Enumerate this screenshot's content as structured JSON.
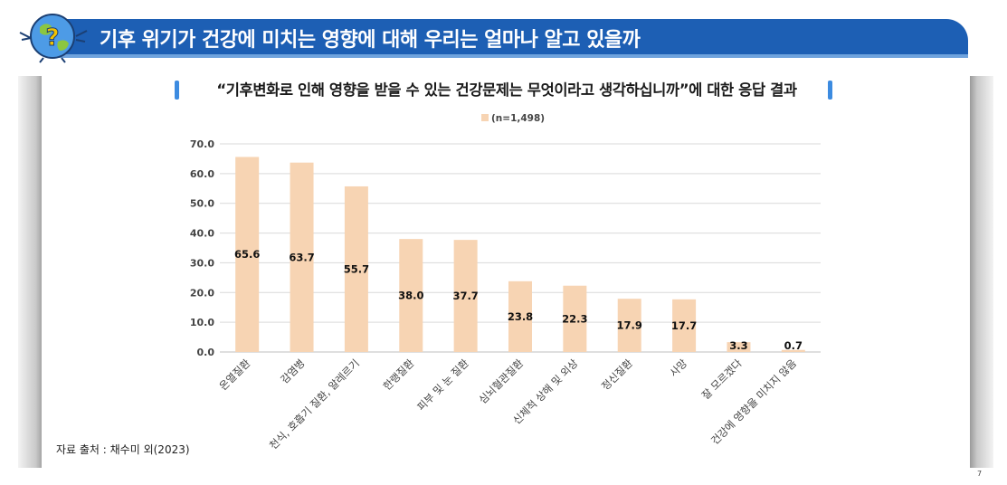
{
  "header": {
    "title": "기후 위기가 건강에 미치는 영향에 대해 우리는 얼마나 알고 있을까",
    "mascot_icon": "earth-question-mascot-icon",
    "color": "#1d5fb4"
  },
  "question": {
    "text": "“기후변화로 인해 영향을 받을 수 있는 건강문제는 무엇이라고 생각하십니까”에 대한 응답 결과",
    "accent_color": "#3c8be0"
  },
  "source": "자료 출처 : 채수미 외(2023)",
  "page_number": "7",
  "chart_data": {
    "type": "bar",
    "legend": "(n=1,498)",
    "legend_position": "top",
    "categories": [
      "온열질환",
      "감염병",
      "천식, 호흡기 질환, 알레르기",
      "한랭질환",
      "피부 및 눈 질환",
      "심뇌혈관질환",
      "신체적 상해 및 외상",
      "정신질환",
      "사망",
      "잘 모르겠다",
      "건강에 영향을 미치지 않음"
    ],
    "values": [
      65.6,
      63.7,
      55.7,
      38.0,
      37.7,
      23.8,
      22.3,
      17.9,
      17.7,
      3.3,
      0.7
    ],
    "value_labels": [
      "65.6",
      "63.7",
      "55.7",
      "38.0",
      "37.7",
      "23.8",
      "22.3",
      "17.9",
      "17.7",
      "3.3",
      "0.7"
    ],
    "y_ticks": [
      "0.0",
      "10.0",
      "20.0",
      "30.0",
      "40.0",
      "50.0",
      "60.0",
      "70.0"
    ],
    "ylim": [
      0,
      70
    ],
    "grid": true,
    "bar_color": "#f7d4b3",
    "title": "",
    "xlabel": "",
    "ylabel": ""
  }
}
